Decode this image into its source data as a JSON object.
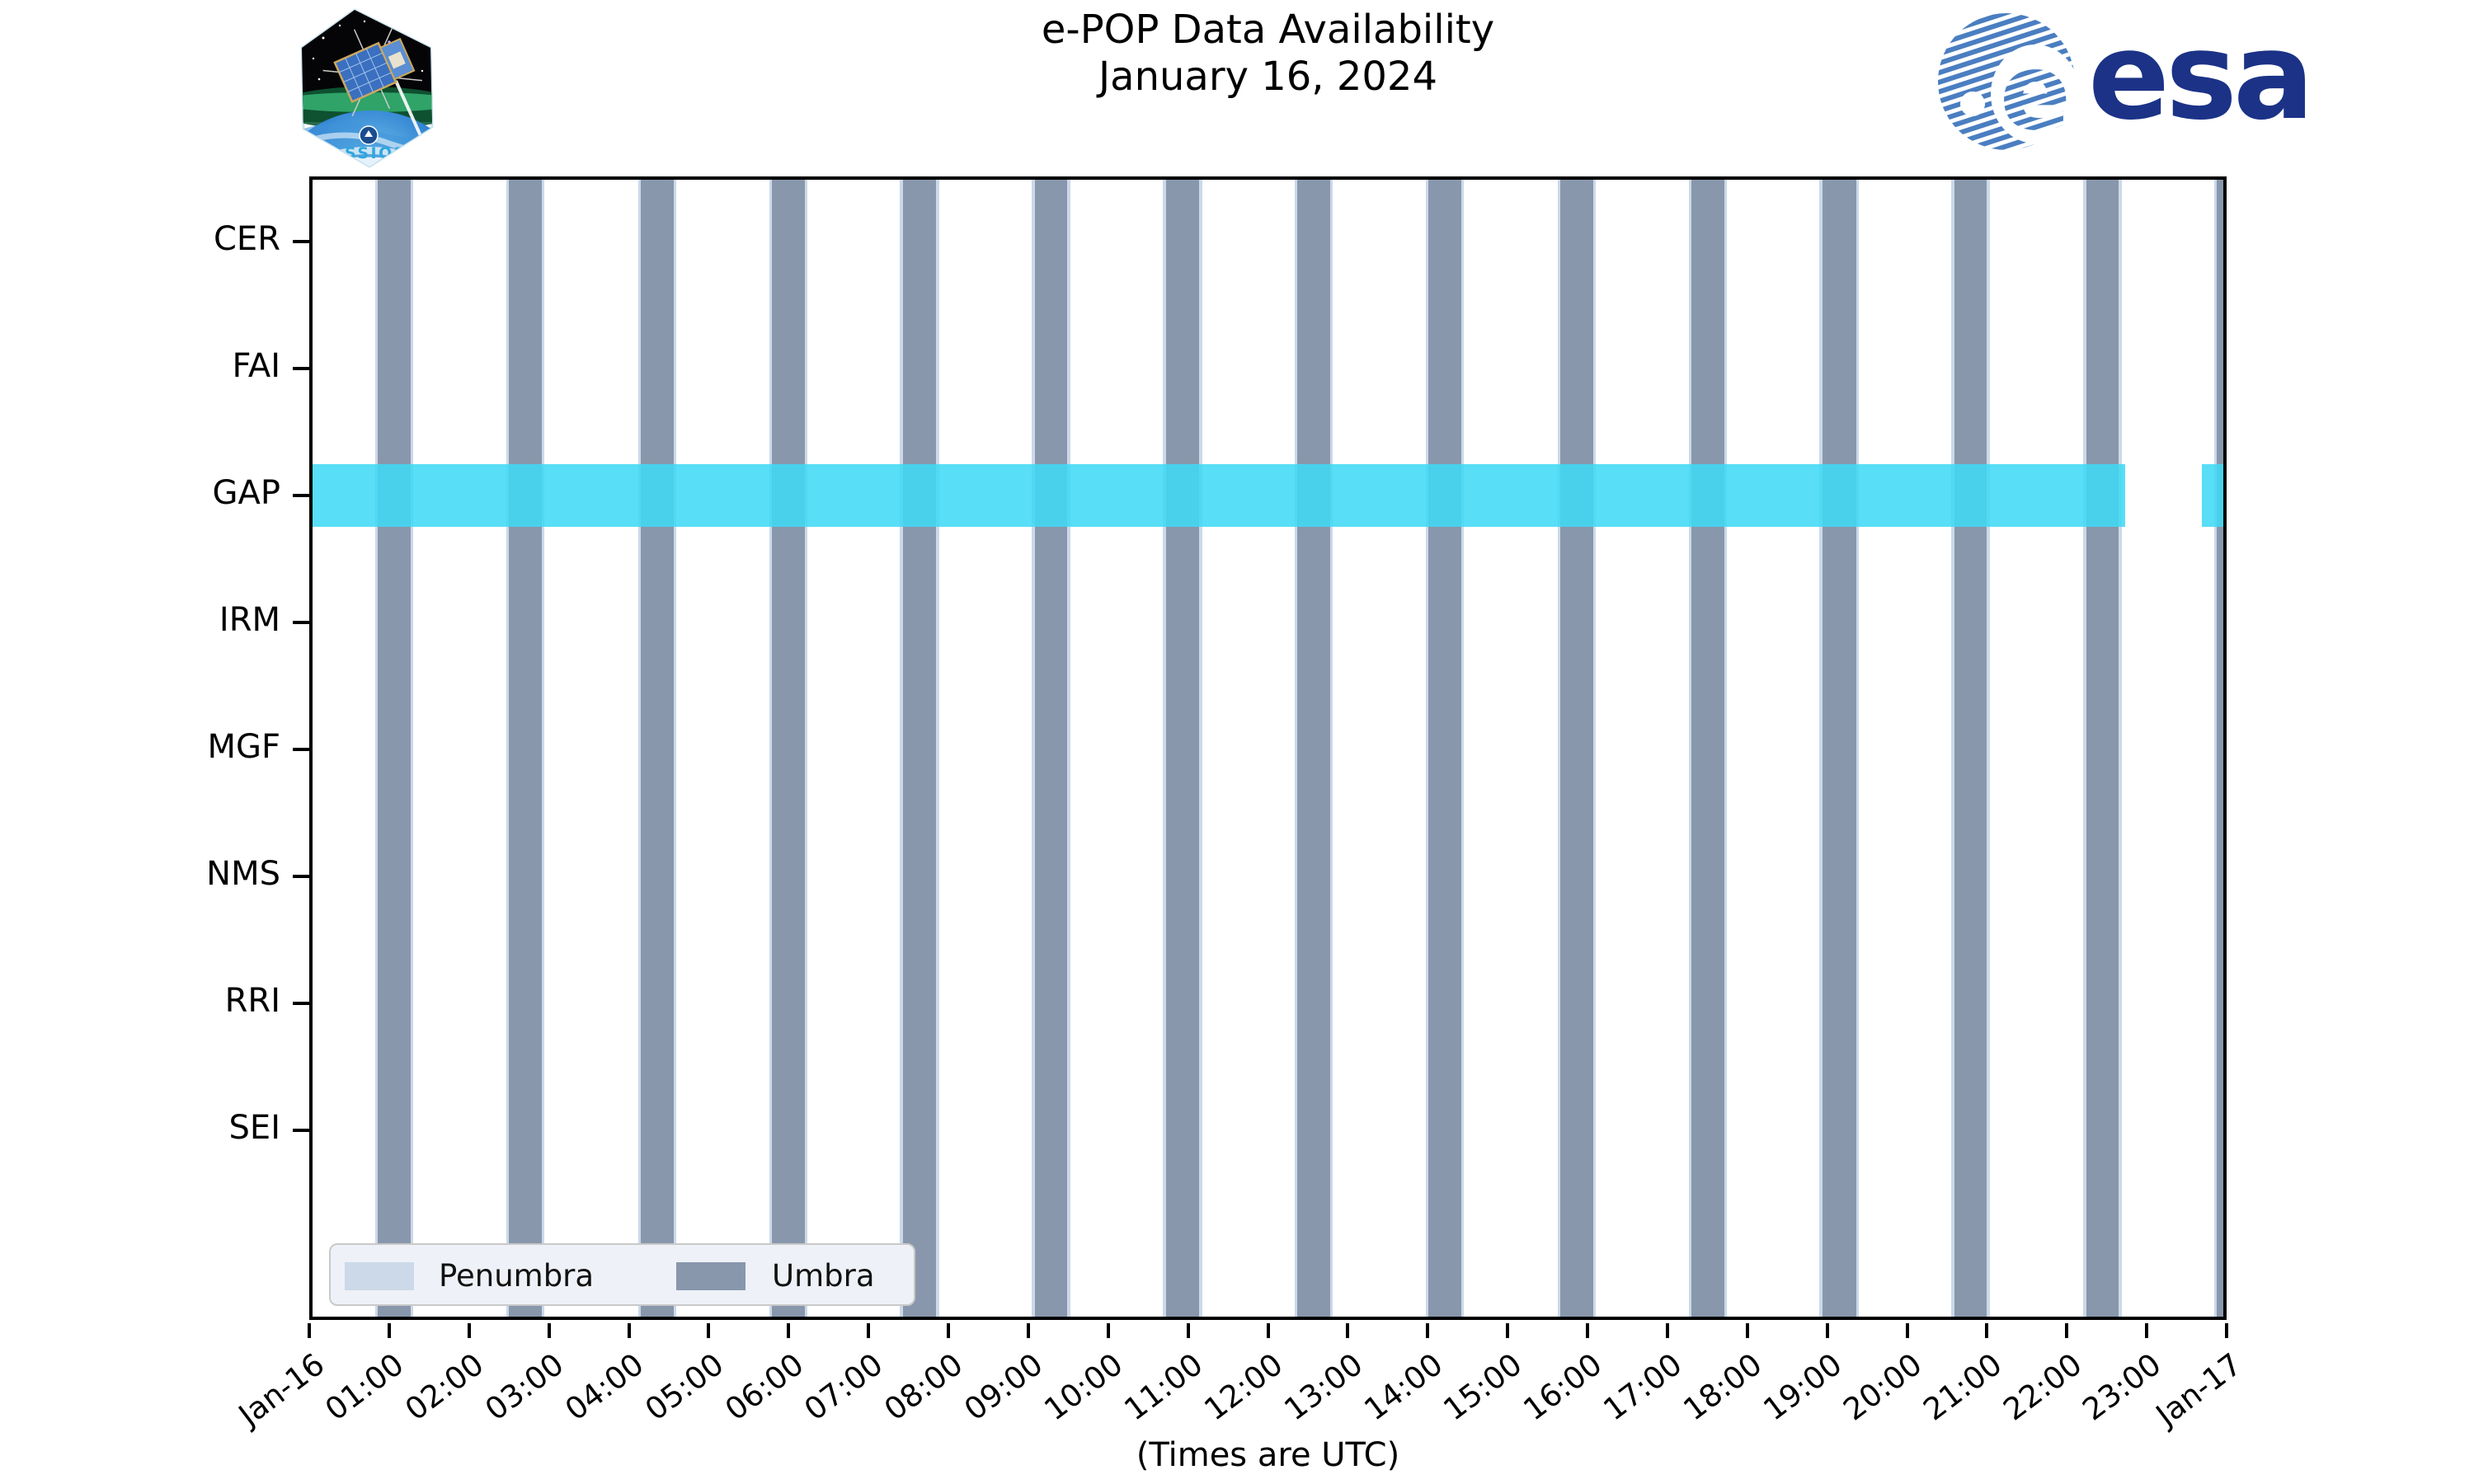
{
  "header": {
    "cassiope_patch_label": "CASSIOPE",
    "esa_logo_text": "esa"
  },
  "chart_data": {
    "type": "timeline",
    "title": "e-POP Data Availability",
    "date": "January 16, 2024",
    "xlabel": "(Times are UTC)",
    "x_range_hours": [
      0,
      24
    ],
    "x_tick_labels": [
      "Jan-16",
      "01:00",
      "02:00",
      "03:00",
      "04:00",
      "05:00",
      "06:00",
      "07:00",
      "08:00",
      "09:00",
      "10:00",
      "11:00",
      "12:00",
      "13:00",
      "14:00",
      "15:00",
      "16:00",
      "17:00",
      "18:00",
      "19:00",
      "20:00",
      "21:00",
      "22:00",
      "23:00",
      "Jan-17"
    ],
    "y_categories": [
      "CER",
      "FAI",
      "GAP",
      "IRM",
      "MGF",
      "NMS",
      "RRI",
      "SEI"
    ],
    "series": [
      {
        "name": "GAP data availability",
        "row": "GAP",
        "color_rgba": "rgba(63,217,245,0.87)",
        "intervals_hours": [
          [
            0.0,
            22.73
          ],
          [
            23.69,
            23.98
          ]
        ]
      }
    ],
    "umbra_intervals_hours": [
      [
        0.86,
        1.27
      ],
      [
        2.5,
        2.91
      ],
      [
        4.15,
        4.56
      ],
      [
        5.79,
        6.2
      ],
      [
        7.43,
        7.85
      ],
      [
        9.08,
        9.49
      ],
      [
        10.72,
        11.14
      ],
      [
        12.37,
        12.78
      ],
      [
        14.01,
        14.42
      ],
      [
        15.66,
        16.07
      ],
      [
        17.3,
        17.71
      ],
      [
        18.94,
        19.36
      ],
      [
        20.59,
        21.0
      ],
      [
        22.24,
        22.65
      ],
      [
        23.88,
        24.29
      ]
    ],
    "penumbra_edge_hours": 0.035,
    "legend": {
      "position": "lower left",
      "entries": [
        {
          "label": "Penumbra",
          "color": "#CBD9E8"
        },
        {
          "label": "Umbra",
          "color": "#8897AC"
        }
      ]
    },
    "colors": {
      "umbra": "#8897AC",
      "penumbra": "#CBD9E8",
      "available_fill": "rgba(63,217,245,0.87)",
      "spine": "#000000"
    },
    "grid": false
  }
}
